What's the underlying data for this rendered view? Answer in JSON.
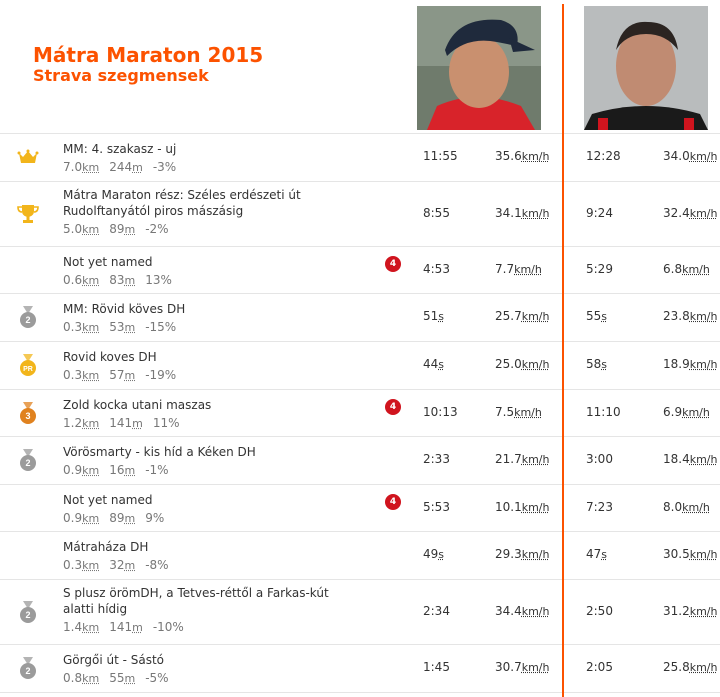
{
  "header": {
    "title": "Mátra Maraton 2015",
    "subtitle": "Strava szegmensek"
  },
  "units": {
    "km": "km",
    "m": "m",
    "kmh": "km/h",
    "s": "s"
  },
  "colors": {
    "accent": "#fc5200",
    "category_badge": "#d0141e",
    "gold": "#f2b51b",
    "silver": "#9b9b9b",
    "bronze": "#e0821f"
  },
  "segments": [
    {
      "icon": "crown-icon",
      "name": "MM: 4. szakasz - uj",
      "dist": "7.0",
      "elev": "244",
      "grade": "-3%",
      "cat": "",
      "time1": "11:55",
      "speed1": "35.6",
      "time2": "12:28",
      "speed2": "34.0"
    },
    {
      "icon": "trophy-icon",
      "name": "Mátra Maraton rész: Széles erdészeti út Rudolftanyától piros mászásig",
      "dist": "5.0",
      "elev": "89",
      "grade": "-2%",
      "cat": "",
      "time1": "8:55",
      "speed1": "34.1",
      "time2": "9:24",
      "speed2": "32.4"
    },
    {
      "icon": "",
      "name": "Not yet named",
      "dist": "0.6",
      "elev": "83",
      "grade": "13%",
      "cat": "4",
      "time1": "4:53",
      "speed1": "7.7",
      "time2": "5:29",
      "speed2": "6.8"
    },
    {
      "icon": "silver-medal-icon",
      "medal": "2",
      "name": "MM: Rövid köves DH",
      "dist": "0.3",
      "elev": "53",
      "grade": "-15%",
      "cat": "",
      "time1": "51",
      "speed1": "25.7",
      "time2": "55",
      "speed2": "23.8"
    },
    {
      "icon": "pr-medal-icon",
      "medal": "PR",
      "name": "Rovid koves DH",
      "dist": "0.3",
      "elev": "57",
      "grade": "-19%",
      "cat": "",
      "time1": "44",
      "speed1": "25.0",
      "time2": "58",
      "speed2": "18.9"
    },
    {
      "icon": "bronze-medal-icon",
      "medal": "3",
      "name": "Zold kocka utani maszas",
      "dist": "1.2",
      "elev": "141",
      "grade": "11%",
      "cat": "4",
      "time1": "10:13",
      "speed1": "7.5",
      "time2": "11:10",
      "speed2": "6.9"
    },
    {
      "icon": "silver-medal-icon",
      "medal": "2",
      "name": "Vörösmarty - kis híd a Kéken DH",
      "dist": "0.9",
      "elev": "16",
      "grade": "-1%",
      "cat": "",
      "time1": "2:33",
      "speed1": "21.7",
      "time2": "3:00",
      "speed2": "18.4"
    },
    {
      "icon": "",
      "name": "Not yet named",
      "dist": "0.9",
      "elev": "89",
      "grade": "9%",
      "cat": "4",
      "time1": "5:53",
      "speed1": "10.1",
      "time2": "7:23",
      "speed2": "8.0"
    },
    {
      "icon": "",
      "name": "Mátraháza DH",
      "dist": "0.3",
      "elev": "32",
      "grade": "-8%",
      "cat": "",
      "time1": "49",
      "speed1": "29.3",
      "time2": "47",
      "speed2": "30.5"
    },
    {
      "icon": "silver-medal-icon",
      "medal": "2",
      "name": "S plusz örömDH, a Tetves-réttől a Farkas-kút alatti hídig",
      "dist": "1.4",
      "elev": "141",
      "grade": "-10%",
      "cat": "",
      "time1": "2:34",
      "speed1": "34.4",
      "time2": "2:50",
      "speed2": "31.2"
    },
    {
      "icon": "silver-medal-icon",
      "medal": "2",
      "name": "Görgői út - Sástó",
      "dist": "0.8",
      "elev": "55",
      "grade": "-5%",
      "cat": "",
      "time1": "1:45",
      "speed1": "30.7",
      "time2": "2:05",
      "speed2": "25.8"
    }
  ]
}
